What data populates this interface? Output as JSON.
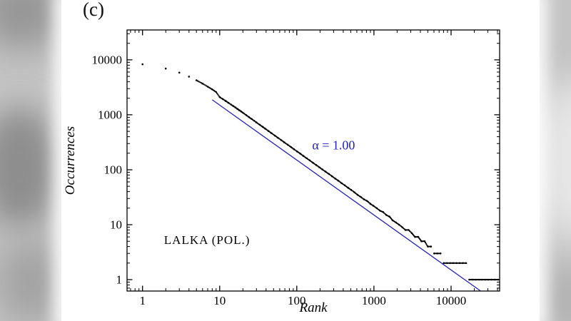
{
  "figure": {
    "panel_label": "(c)",
    "corpus_label": "LALKA  (POL.)",
    "corpus_label_anchor": {
      "rank": 1.9,
      "occurrences": 5.2
    },
    "annotation": {
      "text": "α = 1.00",
      "color": "#2323bb",
      "anchor_rank": 300,
      "anchor_occurrences": 280
    }
  },
  "chart_data": {
    "type": "scatter",
    "title": "",
    "xlabel": "Rank",
    "ylabel": "Occurrences",
    "x_scale": "log",
    "y_scale": "log",
    "x_range": [
      0.63,
      42600
    ],
    "y_range": [
      0.62,
      35000
    ],
    "x_major_ticks": [
      1,
      10,
      100,
      1000,
      10000
    ],
    "x_tick_labels": [
      "1",
      "10",
      "100",
      "1000",
      "10000"
    ],
    "y_major_ticks": [
      1,
      10,
      100,
      1000,
      10000
    ],
    "y_tick_labels": [
      "1",
      "10",
      "100",
      "1000",
      "10000"
    ],
    "grid": false,
    "legend": "none",
    "point_color": "#000000",
    "fit_line": {
      "label": "α = 1.00",
      "alpha": 1.0,
      "amplitude": 15000,
      "rank_start": 8,
      "rank_end": 24000,
      "color": "#2323bb"
    },
    "points": [
      [
        1,
        8300
      ],
      [
        2,
        6950
      ],
      [
        3,
        5850
      ],
      [
        4,
        4950
      ],
      [
        5,
        4250
      ],
      [
        6,
        3700
      ],
      [
        7,
        3250
      ],
      [
        8,
        2900
      ],
      [
        9,
        2600
      ],
      [
        10,
        2100
      ],
      [
        11,
        1930
      ],
      [
        12,
        1780
      ],
      [
        13,
        1650
      ],
      [
        14,
        1540
      ],
      [
        15,
        1445
      ],
      [
        16,
        1360
      ],
      [
        17,
        1280
      ],
      [
        18,
        1210
      ],
      [
        19,
        1148
      ],
      [
        20,
        1090
      ],
      [
        22,
        990
      ],
      [
        24,
        908
      ],
      [
        26,
        838
      ],
      [
        28,
        778
      ],
      [
        30,
        726
      ],
      [
        33,
        660
      ],
      [
        36,
        605
      ],
      [
        39,
        558
      ],
      [
        43,
        506
      ],
      [
        47,
        463
      ],
      [
        52,
        418
      ],
      [
        57,
        381
      ],
      [
        63,
        345
      ],
      [
        69,
        315
      ],
      [
        76,
        286
      ],
      [
        84,
        259
      ],
      [
        92,
        236
      ],
      [
        101,
        215
      ],
      [
        111,
        196
      ],
      [
        122,
        178
      ],
      [
        134,
        162
      ],
      [
        147,
        148
      ],
      [
        162,
        134
      ],
      [
        178,
        122
      ],
      [
        196,
        111
      ],
      [
        215,
        101
      ],
      [
        237,
        92
      ],
      [
        260,
        84
      ],
      [
        286,
        76
      ],
      [
        315,
        69
      ],
      [
        346,
        63
      ],
      [
        381,
        57
      ],
      [
        419,
        52
      ],
      [
        461,
        47
      ],
      [
        507,
        43
      ],
      [
        558,
        39
      ],
      [
        613,
        35
      ],
      [
        675,
        32
      ],
      [
        742,
        29
      ],
      [
        816,
        27
      ],
      [
        898,
        24
      ],
      [
        988,
        22
      ],
      [
        1086,
        20
      ],
      [
        1195,
        18
      ],
      [
        1314,
        17
      ],
      [
        1446,
        15
      ],
      [
        1590,
        14
      ],
      [
        1749,
        12
      ],
      [
        1924,
        11
      ],
      [
        2116,
        10
      ],
      [
        2328,
        9
      ],
      [
        2561,
        8
      ],
      [
        2817,
        8
      ],
      [
        3098,
        7
      ],
      [
        3408,
        6
      ],
      [
        3749,
        6
      ],
      [
        4124,
        5
      ],
      [
        4536,
        5
      ],
      [
        4990,
        4
      ],
      [
        5489,
        4
      ],
      [
        6038,
        3
      ],
      [
        6641,
        3
      ],
      [
        7306,
        3
      ],
      [
        8036,
        2
      ],
      [
        8840,
        2
      ],
      [
        9724,
        2
      ],
      [
        10696,
        2
      ],
      [
        11766,
        2
      ],
      [
        12942,
        2
      ],
      [
        14237,
        2
      ],
      [
        15660,
        2
      ],
      [
        17226,
        1
      ],
      [
        18949,
        1
      ],
      [
        20843,
        1
      ],
      [
        22928,
        1
      ],
      [
        25221,
        1
      ],
      [
        27743,
        1
      ],
      [
        30517,
        1
      ],
      [
        33569,
        1
      ],
      [
        36926,
        1
      ],
      [
        40618,
        1
      ]
    ]
  }
}
